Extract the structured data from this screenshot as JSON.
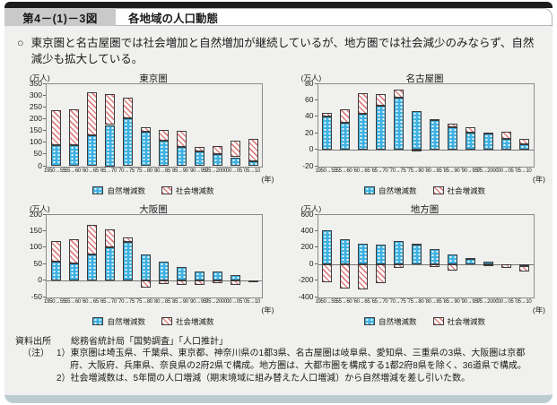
{
  "header": {
    "figure_no": "第4－(1)－3図",
    "title": "各地域の人口動態"
  },
  "lead": {
    "marker": "○",
    "text": "東京圏と名古屋圏では社会増加と自然増加が継続しているが、地方圏では社会減少のみならず、自然減少も拡大している。"
  },
  "colors": {
    "natural_blue": "#3fb1e2",
    "social_pink": "#dd7d7d",
    "topbar_black": "#1c1c1c",
    "panel_bg": "#f0f1ee",
    "bottom_teal": "#bccdd2"
  },
  "chart_data": [
    {
      "type": "bar",
      "title": "東京圏",
      "unit": "(万人)",
      "xunit": "(年)",
      "ylim": [
        0,
        350
      ],
      "ystep": 50,
      "grid": false,
      "legend_position": "bottom",
      "categories": [
        "1950→55",
        "55→60",
        "60→65",
        "65→70",
        "70→75",
        "75→80",
        "80→85",
        "85→90",
        "90→95",
        "95→2000",
        "00→05",
        "05→10"
      ],
      "series": [
        {
          "name": "自然増減数",
          "values": [
            90,
            88,
            130,
            175,
            202,
            147,
            108,
            80,
            62,
            52,
            38,
            22
          ]
        },
        {
          "name": "社会増減数",
          "values": [
            147,
            155,
            183,
            133,
            88,
            18,
            47,
            72,
            18,
            35,
            69,
            95
          ]
        }
      ]
    },
    {
      "type": "bar",
      "title": "名古屋圏",
      "unit": "(万人)",
      "xunit": "(年)",
      "ylim": [
        -20,
        80
      ],
      "ystep": 20,
      "grid": false,
      "legend_position": "bottom",
      "categories": [
        "1950→55",
        "55→60",
        "60→65",
        "65→70",
        "70→75",
        "75→80",
        "80→85",
        "85→90",
        "90→95",
        "95→2000",
        "00→05",
        "05→10"
      ],
      "series": [
        {
          "name": "自然増減数",
          "values": [
            40,
            33,
            44,
            53,
            63,
            47,
            36,
            27,
            21,
            20,
            13,
            7
          ]
        },
        {
          "name": "社会増減数",
          "values": [
            5,
            16,
            25,
            15,
            10,
            -2,
            1,
            5,
            6,
            1,
            9,
            6
          ]
        }
      ]
    },
    {
      "type": "bar",
      "title": "大阪圏",
      "unit": "(万人)",
      "xunit": "(年)",
      "ylim": [
        -50,
        200
      ],
      "ystep": 50,
      "grid": false,
      "legend_position": "bottom",
      "categories": [
        "1950→55",
        "55→60",
        "60→65",
        "65→70",
        "70→75",
        "75→80",
        "80→85",
        "85→90",
        "90→95",
        "95→2000",
        "00→05",
        "05→10"
      ],
      "series": [
        {
          "name": "自然増減数",
          "values": [
            57,
            52,
            79,
            101,
            117,
            80,
            57,
            40,
            28,
            27,
            16,
            1
          ]
        },
        {
          "name": "社会増減数",
          "values": [
            62,
            72,
            91,
            55,
            13,
            -22,
            -10,
            -12,
            -12,
            -7,
            -12,
            -1
          ]
        }
      ]
    },
    {
      "type": "bar",
      "title": "地方圏",
      "unit": "(万人)",
      "xunit": "(年)",
      "ylim": [
        -400,
        600
      ],
      "ystep": 200,
      "grid": false,
      "legend_position": "bottom",
      "categories": [
        "1950→55",
        "55→60",
        "60→65",
        "65→70",
        "70→75",
        "75→80",
        "80→85",
        "85→90",
        "90→95",
        "95→2000",
        "00→05",
        "05→10"
      ],
      "series": [
        {
          "name": "自然増減数",
          "values": [
            410,
            300,
            250,
            240,
            275,
            235,
            185,
            120,
            65,
            30,
            0,
            -30
          ]
        },
        {
          "name": "社会増減数",
          "values": [
            -220,
            -300,
            -310,
            -230,
            -50,
            8,
            -40,
            -75,
            8,
            -20,
            -45,
            -60
          ]
        }
      ]
    }
  ],
  "notes": {
    "source_label": "資料出所",
    "source_text": "総務省統計局「国勢調査」「人口推計」",
    "note_label": "（注）",
    "note1": "1）東京圏は埼玉県、千葉県、東京都、神奈川県の1都3県、名古屋圏は岐阜県、愛知県、三重県の3県、大阪圏は京都府、大阪府、兵庫県、奈良県の2府2県で構成。地方圏は、大都市圏を構成する1都2府8県を除く、36道県で構成。",
    "note2": "2）社会増減数は、5年間の人口増減（期末境域に組み替えた人口増減）から自然増減を差し引いた数。"
  }
}
